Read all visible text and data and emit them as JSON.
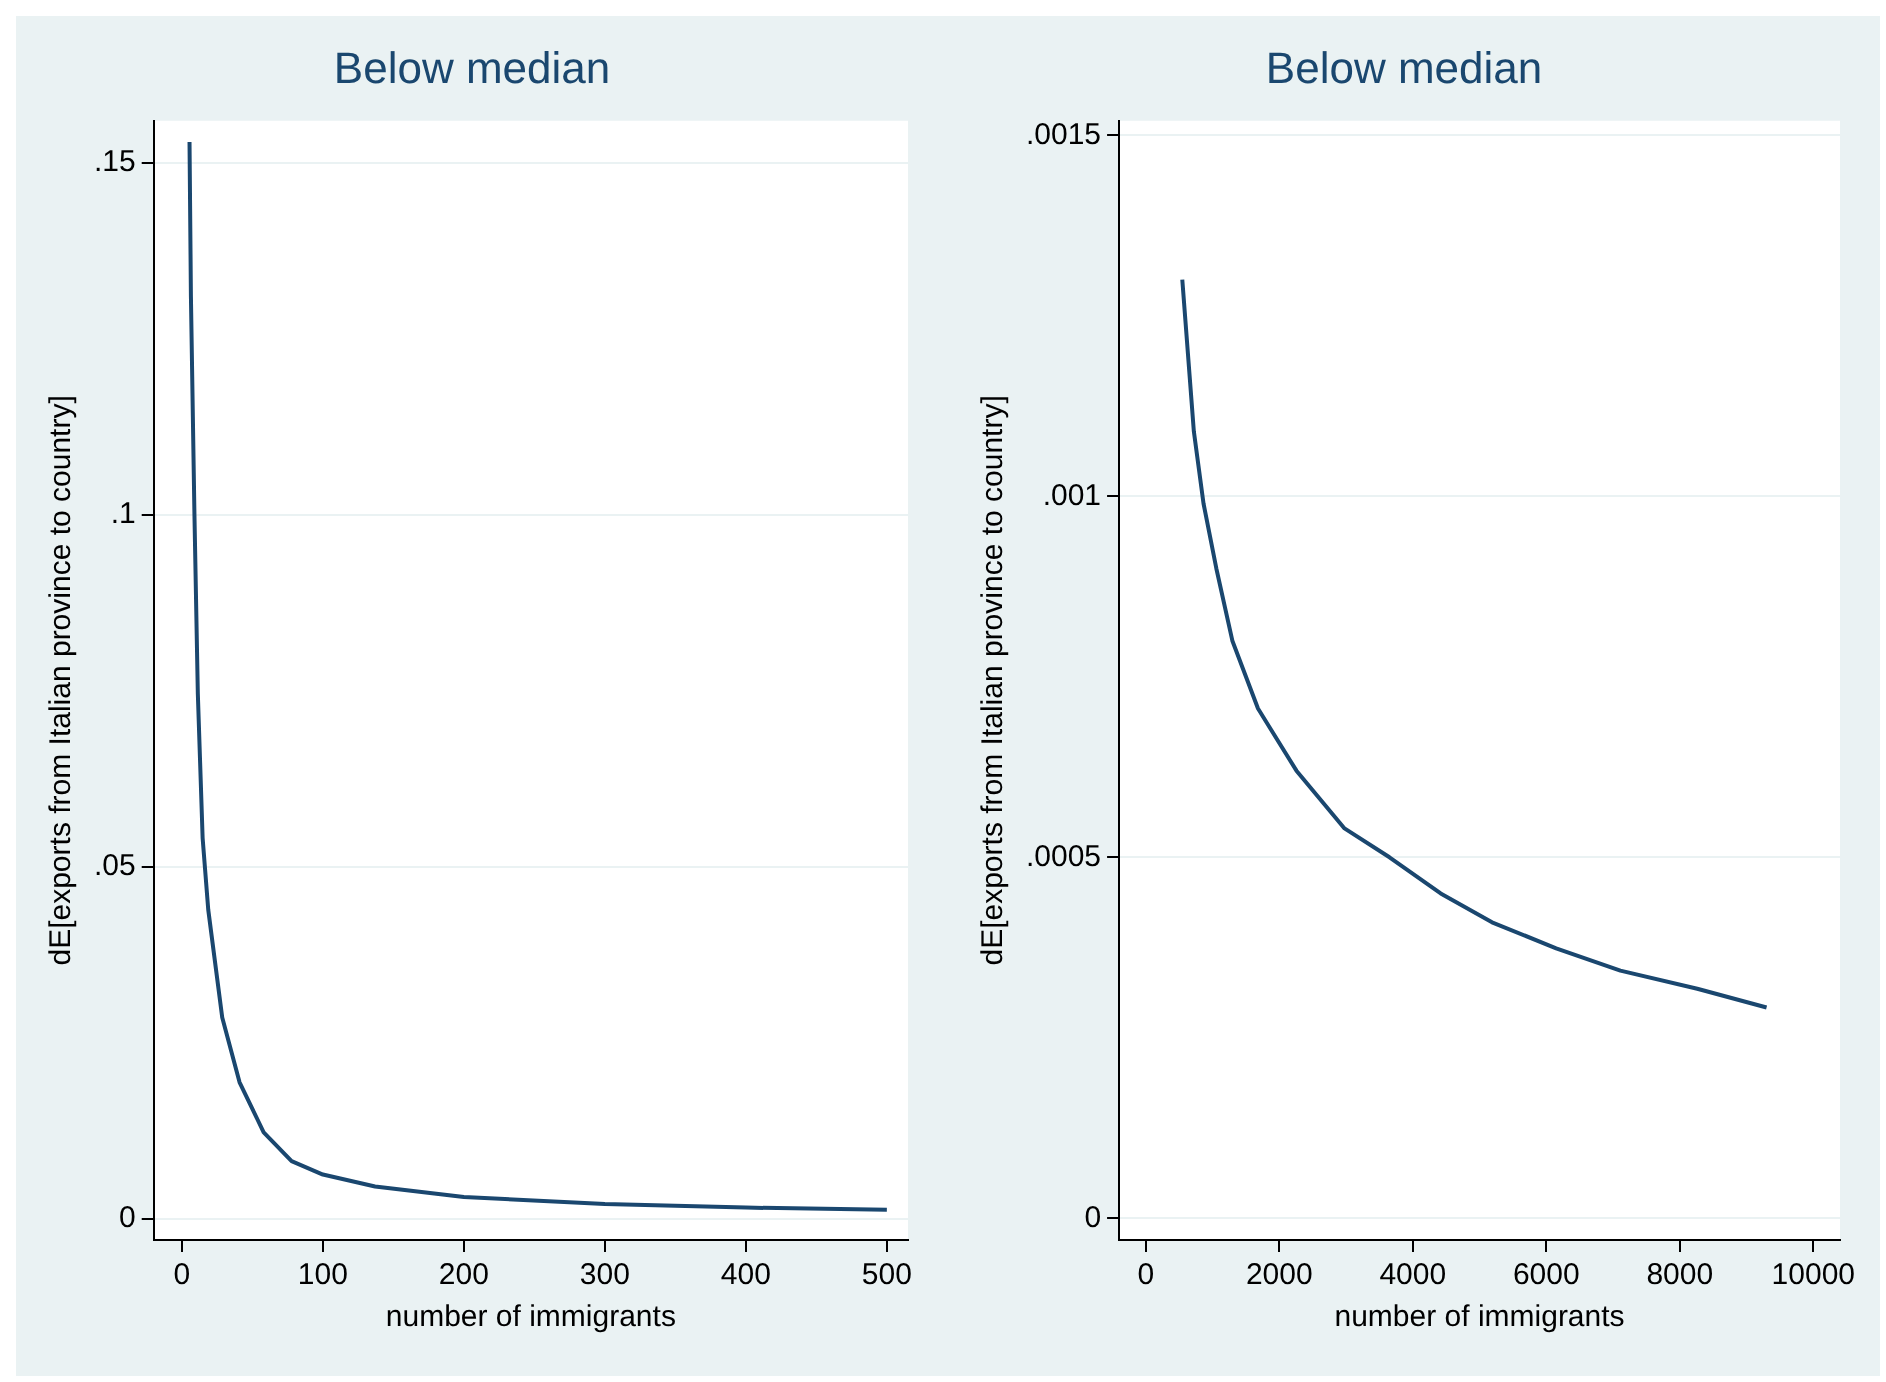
{
  "chart_data": [
    {
      "type": "line",
      "title": "Below median",
      "xlabel": "number of immigrants",
      "ylabel": "dE[exports from Italian province to country]",
      "xlim": [
        -20,
        515
      ],
      "ylim": [
        -0.003,
        0.156
      ],
      "xticks": [
        0,
        100,
        200,
        300,
        400,
        500
      ],
      "yticks": [
        {
          "value": 0,
          "label": "0"
        },
        {
          "value": 0.05,
          "label": ".05"
        },
        {
          "value": 0.1,
          "label": ".1"
        },
        {
          "value": 0.15,
          "label": ".15"
        }
      ],
      "grid": "y",
      "legend": false,
      "series": [
        {
          "color": "#1a476f",
          "x": [
            5.4,
            6.4,
            8.9,
            11.3,
            14.7,
            18.7,
            28.6,
            40.9,
            58,
            77.8,
            100,
            137,
            200,
            300,
            400,
            500
          ],
          "values": [
            0.153,
            0.131,
            0.1,
            0.0746,
            0.0541,
            0.0439,
            0.0286,
            0.0194,
            0.0123,
            0.0082,
            0.0063,
            0.0046,
            0.0031,
            0.0021,
            0.0016,
            0.0013
          ]
        }
      ]
    },
    {
      "type": "line",
      "title": "Below median",
      "xlabel": "number of immigrants",
      "ylabel": "dE[exports from Italian province to country]",
      "xlim": [
        -400,
        10400
      ],
      "ylim": [
        -3e-05,
        0.00152
      ],
      "xticks": [
        0,
        2000,
        4000,
        6000,
        8000,
        10000
      ],
      "yticks": [
        {
          "value": 0,
          "label": "0"
        },
        {
          "value": 0.0005,
          "label": ".0005"
        },
        {
          "value": 0.001,
          "label": ".001"
        },
        {
          "value": 0.0015,
          "label": ".0015"
        }
      ],
      "grid": "y",
      "legend": false,
      "series": [
        {
          "color": "#1a476f",
          "x": [
            547,
            720,
            865,
            1057,
            1297,
            1681,
            2257,
            2977,
            3651,
            4418,
            5187,
            6148,
            7110,
            8262,
            9300
          ],
          "values": [
            0.0013,
            0.00109,
            0.00099,
            0.0009,
            0.0008,
            0.000706,
            0.00062,
            0.00054,
            0.0005,
            0.00045,
            0.00041,
            0.000374,
            0.000343,
            0.000318,
            0.000292
          ]
        }
      ]
    }
  ]
}
